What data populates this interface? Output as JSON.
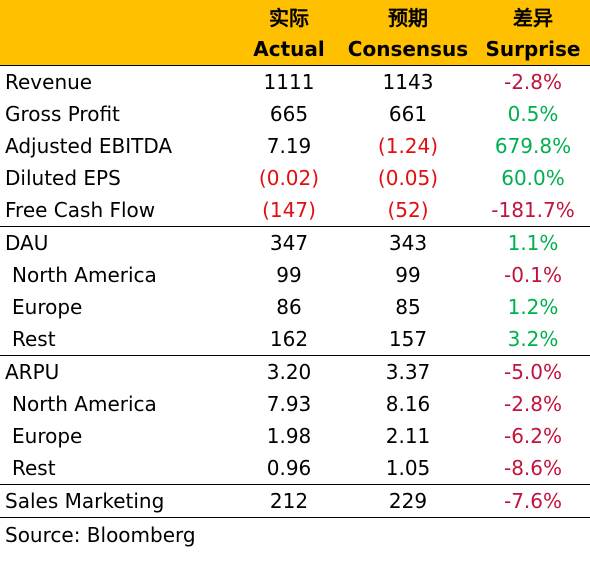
{
  "header": {
    "cn": [
      "",
      "实际",
      "预期",
      "差异"
    ],
    "en": [
      "",
      "Actual",
      "Consensus",
      "Surprise"
    ]
  },
  "colors": {
    "header_bg": "#FFC000",
    "negative_value": "#E01010",
    "negative_surprise": "#C0143C",
    "positive_surprise": "#00B050"
  },
  "rows": [
    {
      "label": "Revenue",
      "actual": "1111",
      "consensus": "1143",
      "surprise": "-2.8%",
      "actual_tone": "blk",
      "consensus_tone": "blk",
      "surprise_tone": "neg-dark",
      "indent": false,
      "sep": false
    },
    {
      "label": "Gross Profit",
      "actual": "665",
      "consensus": "661",
      "surprise": "0.5%",
      "actual_tone": "blk",
      "consensus_tone": "blk",
      "surprise_tone": "pos",
      "indent": false,
      "sep": false
    },
    {
      "label": "Adjusted EBITDA",
      "actual": "7.19",
      "consensus": "(1.24)",
      "surprise": "679.8%",
      "actual_tone": "blk",
      "consensus_tone": "neg",
      "surprise_tone": "pos",
      "indent": false,
      "sep": false
    },
    {
      "label": "Diluted EPS",
      "actual": "(0.02)",
      "consensus": "(0.05)",
      "surprise": "60.0%",
      "actual_tone": "neg",
      "consensus_tone": "neg",
      "surprise_tone": "pos",
      "indent": false,
      "sep": false
    },
    {
      "label": "Free Cash Flow",
      "actual": "(147)",
      "consensus": "(52)",
      "surprise": "-181.7%",
      "actual_tone": "neg",
      "consensus_tone": "neg",
      "surprise_tone": "neg-dark",
      "indent": false,
      "sep": false
    },
    {
      "label": "DAU",
      "actual": "347",
      "consensus": "343",
      "surprise": "1.1%",
      "actual_tone": "blk",
      "consensus_tone": "blk",
      "surprise_tone": "pos",
      "indent": false,
      "sep": true
    },
    {
      "label": "North America",
      "actual": "99",
      "consensus": "99",
      "surprise": "-0.1%",
      "actual_tone": "blk",
      "consensus_tone": "blk",
      "surprise_tone": "neg-dark",
      "indent": true,
      "sep": false
    },
    {
      "label": "Europe",
      "actual": "86",
      "consensus": "85",
      "surprise": "1.2%",
      "actual_tone": "blk",
      "consensus_tone": "blk",
      "surprise_tone": "pos",
      "indent": true,
      "sep": false
    },
    {
      "label": "Rest",
      "actual": "162",
      "consensus": "157",
      "surprise": "3.2%",
      "actual_tone": "blk",
      "consensus_tone": "blk",
      "surprise_tone": "pos",
      "indent": true,
      "sep": false
    },
    {
      "label": "ARPU",
      "actual": "3.20",
      "consensus": "3.37",
      "surprise": "-5.0%",
      "actual_tone": "blk",
      "consensus_tone": "blk",
      "surprise_tone": "neg-dark",
      "indent": false,
      "sep": true
    },
    {
      "label": "North America",
      "actual": "7.93",
      "consensus": "8.16",
      "surprise": "-2.8%",
      "actual_tone": "blk",
      "consensus_tone": "blk",
      "surprise_tone": "neg-dark",
      "indent": true,
      "sep": false
    },
    {
      "label": "Europe",
      "actual": "1.98",
      "consensus": "2.11",
      "surprise": "-6.2%",
      "actual_tone": "blk",
      "consensus_tone": "blk",
      "surprise_tone": "neg-dark",
      "indent": true,
      "sep": false
    },
    {
      "label": "Rest",
      "actual": "0.96",
      "consensus": "1.05",
      "surprise": "-8.6%",
      "actual_tone": "blk",
      "consensus_tone": "blk",
      "surprise_tone": "neg-dark",
      "indent": true,
      "sep": false
    },
    {
      "label": "Sales Marketing",
      "actual": "212",
      "consensus": "229",
      "surprise": "-7.6%",
      "actual_tone": "blk",
      "consensus_tone": "blk",
      "surprise_tone": "neg-dark",
      "indent": false,
      "sep": true
    }
  ],
  "source": "Source: Bloomberg"
}
